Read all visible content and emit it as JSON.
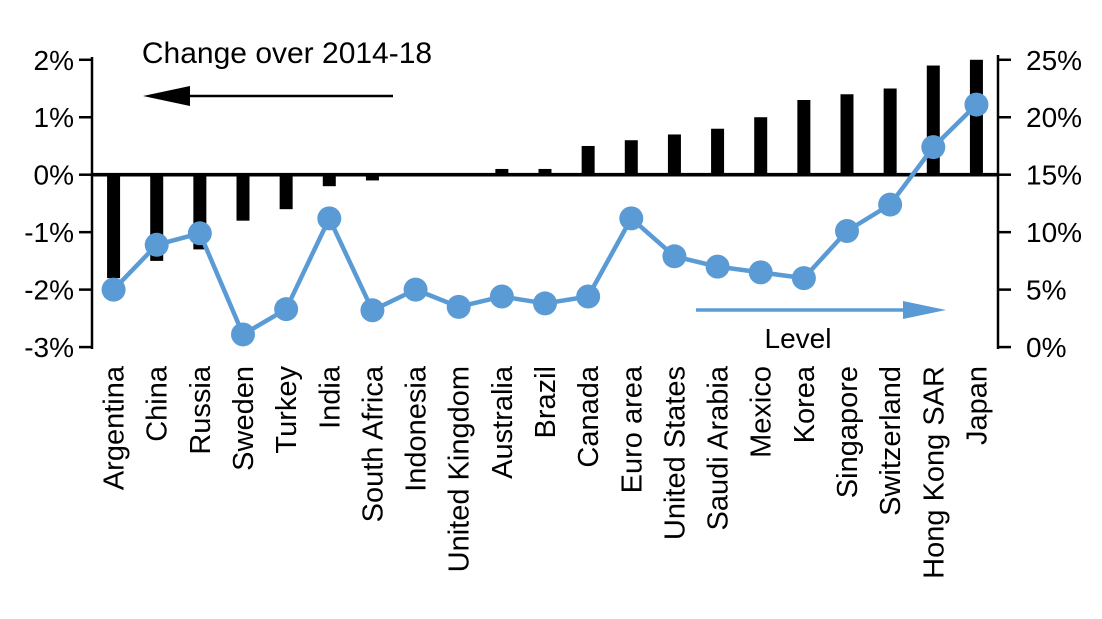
{
  "chart_data": {
    "type": "combo-bar-line",
    "categories": [
      "Argentina",
      "China",
      "Russia",
      "Sweden",
      "Turkey",
      "India",
      "South Africa",
      "Indonesia",
      "United Kingdom",
      "Australia",
      "Brazil",
      "Canada",
      "Euro area",
      "United States",
      "Saudi Arabia",
      "Mexico",
      "Korea",
      "Singapore",
      "Switzerland",
      "Hong Kong SAR",
      "Japan"
    ],
    "series": [
      {
        "name": "Change over 2014-18",
        "type": "bar",
        "axis": "left",
        "color": "#000000",
        "values": [
          -1.8,
          -1.5,
          -1.3,
          -0.8,
          -0.6,
          -0.2,
          -0.1,
          0.0,
          0.0,
          0.1,
          0.1,
          0.5,
          0.6,
          0.7,
          0.8,
          1.0,
          1.3,
          1.4,
          1.5,
          1.9,
          2.0
        ]
      },
      {
        "name": "Level",
        "type": "line",
        "axis": "right",
        "color": "#5B9BD5",
        "values": [
          5.0,
          8.9,
          9.9,
          1.1,
          3.3,
          11.2,
          3.2,
          5.0,
          3.5,
          4.4,
          3.8,
          4.4,
          11.2,
          7.9,
          7.0,
          6.5,
          6.0,
          10.1,
          12.4,
          17.4,
          21.1
        ]
      }
    ],
    "left_axis": {
      "tick_labels": [
        "2%",
        "1%",
        "0%",
        "-1%",
        "-2%",
        "-3%"
      ],
      "tick_values": [
        2,
        1,
        0,
        -1,
        -2,
        -3
      ],
      "range": [
        -3,
        2
      ]
    },
    "right_axis": {
      "tick_labels": [
        "25%",
        "20%",
        "15%",
        "10%",
        "5%",
        "0%"
      ],
      "tick_values": [
        25,
        20,
        15,
        10,
        5,
        0
      ],
      "range": [
        0,
        25
      ]
    },
    "annotations": {
      "change_label": "Change over 2014-18",
      "level_label": "Level"
    },
    "grid": false,
    "legend_position": "in-plot-arrows",
    "background": "#ffffff"
  }
}
